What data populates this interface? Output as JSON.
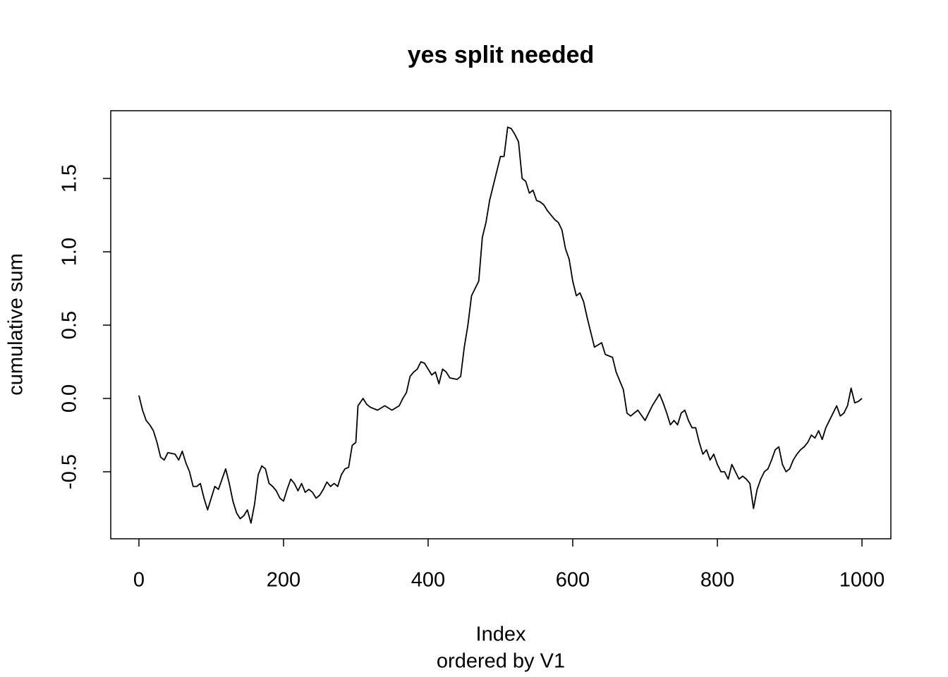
{
  "chart_data": {
    "type": "line",
    "title": "yes split needed",
    "xlabel": "Index",
    "subtitle": "ordered by V1",
    "ylabel": "cumulative sum",
    "color": "#000000",
    "grid": false,
    "x": [
      0,
      5,
      10,
      15,
      20,
      25,
      30,
      35,
      40,
      50,
      55,
      60,
      65,
      70,
      75,
      80,
      85,
      90,
      95,
      100,
      105,
      110,
      115,
      120,
      125,
      130,
      135,
      140,
      145,
      150,
      155,
      160,
      165,
      170,
      175,
      180,
      185,
      190,
      195,
      200,
      205,
      210,
      215,
      220,
      225,
      230,
      235,
      240,
      245,
      250,
      255,
      260,
      265,
      270,
      275,
      280,
      285,
      290,
      295,
      300,
      303,
      310,
      315,
      320,
      330,
      340,
      350,
      360,
      365,
      370,
      375,
      380,
      385,
      390,
      395,
      400,
      405,
      410,
      415,
      420,
      425,
      430,
      440,
      445,
      450,
      455,
      460,
      465,
      470,
      475,
      480,
      485,
      490,
      495,
      500,
      505,
      510,
      515,
      520,
      525,
      530,
      535,
      540,
      545,
      550,
      555,
      560,
      565,
      570,
      575,
      580,
      585,
      590,
      595,
      600,
      605,
      610,
      615,
      620,
      625,
      630,
      640,
      645,
      655,
      660,
      670,
      675,
      680,
      690,
      700,
      705,
      710,
      720,
      725,
      730,
      735,
      740,
      745,
      750,
      755,
      760,
      765,
      770,
      775,
      780,
      785,
      790,
      795,
      800,
      805,
      810,
      815,
      820,
      825,
      830,
      835,
      840,
      845,
      850,
      855,
      860,
      865,
      870,
      875,
      880,
      885,
      890,
      895,
      900,
      905,
      910,
      915,
      920,
      925,
      930,
      935,
      940,
      945,
      950,
      955,
      960,
      965,
      970,
      975,
      980,
      985,
      990,
      995,
      1000
    ],
    "values": [
      0.02,
      -0.08,
      -0.15,
      -0.18,
      -0.22,
      -0.3,
      -0.4,
      -0.42,
      -0.37,
      -0.38,
      -0.42,
      -0.36,
      -0.44,
      -0.5,
      -0.6,
      -0.6,
      -0.58,
      -0.68,
      -0.76,
      -0.68,
      -0.6,
      -0.62,
      -0.55,
      -0.48,
      -0.58,
      -0.7,
      -0.78,
      -0.82,
      -0.8,
      -0.76,
      -0.85,
      -0.72,
      -0.52,
      -0.46,
      -0.48,
      -0.58,
      -0.6,
      -0.63,
      -0.68,
      -0.7,
      -0.62,
      -0.55,
      -0.58,
      -0.63,
      -0.58,
      -0.64,
      -0.62,
      -0.64,
      -0.68,
      -0.66,
      -0.62,
      -0.57,
      -0.6,
      -0.58,
      -0.6,
      -0.52,
      -0.48,
      -0.47,
      -0.32,
      -0.3,
      -0.05,
      0.0,
      -0.04,
      -0.06,
      -0.08,
      -0.05,
      -0.08,
      -0.05,
      0.0,
      0.04,
      0.15,
      0.18,
      0.2,
      0.25,
      0.24,
      0.2,
      0.16,
      0.18,
      0.1,
      0.2,
      0.18,
      0.14,
      0.13,
      0.15,
      0.35,
      0.5,
      0.7,
      0.75,
      0.8,
      1.1,
      1.2,
      1.35,
      1.45,
      1.55,
      1.65,
      1.65,
      1.85,
      1.84,
      1.8,
      1.75,
      1.5,
      1.48,
      1.4,
      1.42,
      1.35,
      1.34,
      1.32,
      1.28,
      1.25,
      1.22,
      1.2,
      1.15,
      1.02,
      0.95,
      0.8,
      0.7,
      0.72,
      0.66,
      0.55,
      0.45,
      0.35,
      0.38,
      0.3,
      0.28,
      0.18,
      0.06,
      -0.1,
      -0.12,
      -0.08,
      -0.15,
      -0.1,
      -0.05,
      0.03,
      -0.03,
      -0.1,
      -0.18,
      -0.15,
      -0.18,
      -0.1,
      -0.08,
      -0.15,
      -0.2,
      -0.2,
      -0.3,
      -0.38,
      -0.35,
      -0.42,
      -0.38,
      -0.45,
      -0.5,
      -0.5,
      -0.55,
      -0.45,
      -0.5,
      -0.55,
      -0.53,
      -0.55,
      -0.58,
      -0.75,
      -0.62,
      -0.55,
      -0.5,
      -0.48,
      -0.42,
      -0.35,
      -0.33,
      -0.45,
      -0.5,
      -0.48,
      -0.42,
      -0.38,
      -0.35,
      -0.33,
      -0.3,
      -0.25,
      -0.27,
      -0.22,
      -0.28,
      -0.2,
      -0.15,
      -0.1,
      -0.05,
      -0.12,
      -0.1,
      -0.05,
      0.07,
      -0.03,
      -0.02,
      0.0
    ],
    "xlim": [
      -38.96,
      1039.96
    ],
    "ylim": [
      -0.957,
      1.962
    ],
    "xticks": [
      0,
      200,
      400,
      600,
      800,
      1000
    ],
    "yticks": [
      -0.5,
      {
        "value": 0,
        "label": "0.0"
      },
      0.5,
      {
        "value": 1,
        "label": "1.0"
      },
      1.5
    ]
  }
}
